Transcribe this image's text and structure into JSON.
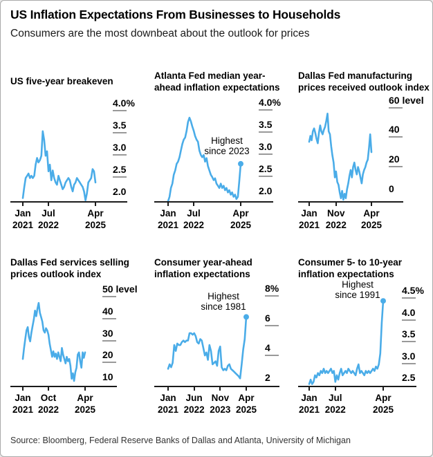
{
  "header": {
    "title": "US Inflation Expectations From Businesses to Households",
    "subtitle": "Consumers are the most downbeat about the outlook for prices"
  },
  "source": "Source: Bloomberg, Federal Reserve Banks of Dallas and Atlanta, University of Michigan",
  "colors": {
    "line": "#4aace8",
    "axis": "#1a1a1a",
    "tick_dash": "#999999",
    "text": "#000000"
  },
  "chart_data": [
    {
      "type": "line",
      "title": "US five-year breakeven",
      "x_start": "Jan 2021",
      "x_end": "Apr 2025",
      "x_unit": "month",
      "ylim": [
        1.93,
        4.18
      ],
      "yticks": [
        {
          "v": 4.0,
          "label": "4.0%"
        },
        {
          "v": 3.5,
          "label": "3.5"
        },
        {
          "v": 3.0,
          "label": "3.0"
        },
        {
          "v": 2.5,
          "label": "2.5"
        },
        {
          "v": 2.0,
          "label": "2.0"
        }
      ],
      "xticks": [
        {
          "m": 0,
          "month": "Jan",
          "year": "2021"
        },
        {
          "m": 18,
          "month": "Jul",
          "year": "2022"
        },
        {
          "m": 51,
          "month": "Apr",
          "year": "2025"
        }
      ],
      "values": [
        2.0,
        2.25,
        2.45,
        2.5,
        2.55,
        2.45,
        2.5,
        2.45,
        2.5,
        2.75,
        2.9,
        2.8,
        2.85,
        2.95,
        3.5,
        3.3,
        2.95,
        3.05,
        2.6,
        2.75,
        2.4,
        2.62,
        2.45,
        2.35,
        2.3,
        2.5,
        2.4,
        2.3,
        2.2,
        2.25,
        2.35,
        2.4,
        2.45,
        2.4,
        2.25,
        2.15,
        2.3,
        2.35,
        2.45,
        2.4,
        2.35,
        2.3,
        2.25,
        2.15,
        1.95,
        2.1,
        2.35,
        2.4,
        2.45,
        2.65,
        2.6,
        2.35
      ],
      "end_dot": false,
      "annotation": null
    },
    {
      "type": "line",
      "title": "Atlanta Fed median year-ahead inflation expectations",
      "x_start": "Jan 2021",
      "x_end": "Apr 2025",
      "x_unit": "month",
      "ylim": [
        1.9,
        4.18
      ],
      "yticks": [
        {
          "v": 4.0,
          "label": "4.0%"
        },
        {
          "v": 3.5,
          "label": "3.5"
        },
        {
          "v": 3.0,
          "label": "3.0"
        },
        {
          "v": 2.5,
          "label": "2.5"
        },
        {
          "v": 2.0,
          "label": "2.0"
        }
      ],
      "xticks": [
        {
          "m": 0,
          "month": "Jan",
          "year": "2021"
        },
        {
          "m": 18,
          "month": "Jul",
          "year": "2022"
        },
        {
          "m": 51,
          "month": "Apr",
          "year": "2025"
        }
      ],
      "values": [
        1.9,
        2.0,
        2.2,
        2.3,
        2.5,
        2.6,
        2.75,
        2.8,
        2.9,
        3.05,
        3.2,
        3.3,
        3.35,
        3.5,
        3.7,
        3.8,
        3.72,
        3.6,
        3.5,
        3.38,
        3.3,
        3.25,
        3.05,
        2.95,
        2.9,
        2.95,
        2.8,
        2.88,
        2.7,
        2.6,
        2.5,
        2.45,
        2.38,
        2.42,
        2.3,
        2.25,
        2.2,
        2.3,
        2.2,
        2.25,
        2.15,
        2.2,
        2.1,
        2.15,
        2.05,
        2.1,
        2.0,
        2.05,
        1.95,
        2.0,
        2.35,
        2.75
      ],
      "end_dot": true,
      "annotation": {
        "lines": [
          "Highest",
          "since 2023"
        ]
      }
    },
    {
      "type": "line",
      "title": "Dallas Fed manufacturing prices received outlook index",
      "x_start": "Jan 2021",
      "x_end": "Apr 2025",
      "x_unit": "month",
      "ylim": [
        -4,
        63.5
      ],
      "yticks": [
        {
          "v": 60,
          "label": "60 level"
        },
        {
          "v": 40,
          "label": "40"
        },
        {
          "v": 20,
          "label": "20"
        },
        {
          "v": 0,
          "label": "0"
        }
      ],
      "xticks": [
        {
          "m": 0,
          "month": "Jan",
          "year": "2021"
        },
        {
          "m": 22,
          "month": "Nov",
          "year": "2022"
        },
        {
          "m": 51,
          "month": "Apr",
          "year": "2025"
        }
      ],
      "values": [
        36,
        40,
        37,
        43,
        45,
        42,
        38,
        35,
        42,
        47,
        43,
        41,
        44,
        46,
        50,
        55,
        43,
        41,
        33,
        27,
        22,
        12,
        16,
        9,
        7,
        2,
        -2,
        3,
        -3,
        1,
        -2,
        4,
        8,
        13,
        17,
        12,
        19,
        22,
        17,
        14,
        19,
        16,
        12,
        8,
        14,
        17,
        19,
        22,
        24,
        32,
        41,
        29
      ],
      "end_dot": false,
      "annotation": null
    },
    {
      "type": "line",
      "title": "Dallas Fed services selling prices outlook index",
      "x_start": "Jan 2021",
      "x_end": "Apr 2025",
      "x_unit": "month",
      "ylim": [
        8.8,
        56
      ],
      "yticks": [
        {
          "v": 50,
          "label": "50 level"
        },
        {
          "v": 40,
          "label": "40"
        },
        {
          "v": 30,
          "label": "30"
        },
        {
          "v": 20,
          "label": "20"
        },
        {
          "v": 10,
          "label": "10"
        }
      ],
      "xticks": [
        {
          "m": 0,
          "month": "Jan",
          "year": "2021"
        },
        {
          "m": 21,
          "month": "Oct",
          "year": "2022"
        },
        {
          "m": 51,
          "month": "Apr",
          "year": "2025"
        }
      ],
      "values": [
        21,
        26,
        30,
        34,
        35.5,
        31,
        29,
        33,
        36,
        39,
        43,
        40.5,
        44,
        46.5,
        42,
        40,
        38,
        34,
        33,
        35,
        34,
        32,
        28,
        25,
        22,
        24.5,
        22,
        23.5,
        21,
        24,
        22,
        20,
        26,
        23,
        21,
        19,
        22,
        20,
        21,
        18,
        12,
        14.5,
        11,
        15,
        17,
        23,
        24,
        20,
        17,
        24,
        21.5,
        24
      ],
      "end_dot": false,
      "annotation": null
    },
    {
      "type": "line",
      "title": "Consumer year-ahead inflation expectations",
      "x_start": "Jan 2021",
      "x_end": "Apr 2025",
      "x_unit": "month",
      "ylim": [
        1.85,
        8.85
      ],
      "yticks": [
        {
          "v": 8,
          "label": "8%"
        },
        {
          "v": 6,
          "label": "6"
        },
        {
          "v": 4,
          "label": "4"
        },
        {
          "v": 2,
          "label": "2"
        }
      ],
      "xticks": [
        {
          "m": 0,
          "month": "Jan",
          "year": "2021"
        },
        {
          "m": 17,
          "month": "Jun",
          "year": "2022"
        },
        {
          "m": 34,
          "month": "Nov",
          "year": "2023"
        },
        {
          "m": 51,
          "month": "Apr",
          "year": "2025"
        }
      ],
      "values": [
        3.0,
        3.3,
        3.1,
        3.4,
        4.6,
        4.2,
        4.7,
        4.6,
        4.6,
        4.8,
        4.9,
        4.8,
        4.9,
        4.9,
        5.4,
        5.4,
        5.3,
        5.4,
        5.2,
        4.8,
        4.7,
        5.0,
        4.9,
        4.4,
        3.9,
        4.1,
        3.6,
        4.6,
        4.2,
        3.3,
        3.4,
        3.5,
        3.2,
        4.2,
        4.5,
        3.1,
        2.9,
        3.0,
        2.9,
        3.2,
        3.3,
        3.0,
        2.9,
        2.8,
        2.7,
        2.6,
        2.5,
        2.35,
        3.3,
        4.3,
        5.0,
        6.5
      ],
      "end_dot": true,
      "annotation": {
        "lines": [
          "Highest",
          "since 1981"
        ]
      }
    },
    {
      "type": "line",
      "title": "Consumer 5- to 10-year inflation expectations",
      "x_start": "Jan 2021",
      "x_end": "Apr 2025",
      "x_unit": "month",
      "ylim": [
        2.46,
        4.83
      ],
      "yticks": [
        {
          "v": 4.5,
          "label": "4.5%"
        },
        {
          "v": 4.0,
          "label": "4.0"
        },
        {
          "v": 3.5,
          "label": "3.5"
        },
        {
          "v": 3.0,
          "label": "3.0"
        },
        {
          "v": 2.5,
          "label": "2.5"
        }
      ],
      "xticks": [
        {
          "m": 0,
          "month": "Jan",
          "year": "2021"
        },
        {
          "m": 18,
          "month": "Jul",
          "year": "2022"
        },
        {
          "m": 51,
          "month": "Apr",
          "year": "2025"
        }
      ],
      "values": [
        2.5,
        2.6,
        2.5,
        2.55,
        2.7,
        2.65,
        2.75,
        2.7,
        2.8,
        2.75,
        2.85,
        2.75,
        2.8,
        2.75,
        2.8,
        2.85,
        2.75,
        2.8,
        2.55,
        2.7,
        2.6,
        2.75,
        2.85,
        2.7,
        2.75,
        2.8,
        2.75,
        2.85,
        2.8,
        2.75,
        2.8,
        2.75,
        2.7,
        2.85,
        2.95,
        2.75,
        2.8,
        2.75,
        2.7,
        2.8,
        2.75,
        2.8,
        2.75,
        2.8,
        2.85,
        2.8,
        2.9,
        2.85,
        2.95,
        3.2,
        3.9,
        4.4
      ],
      "end_dot": true,
      "annotation": {
        "lines": [
          "Highest",
          "since 1991"
        ]
      }
    }
  ]
}
